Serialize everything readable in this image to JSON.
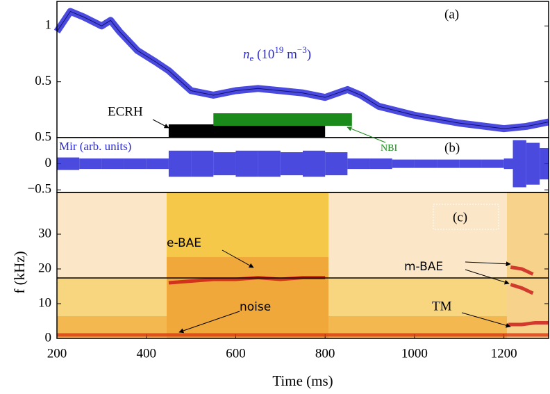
{
  "chart_data": [
    {
      "type": "line",
      "panel_label": "(a)",
      "xlim": [
        200,
        1300
      ],
      "ylim": [
        0,
        1.22
      ],
      "yticks": [
        0.5,
        1
      ],
      "label": {
        "base": "n",
        "sub": "e",
        "open": " (10",
        "sup1": "19",
        "unit": " m",
        "sup2": "−3",
        "close": ")"
      },
      "series": [
        {
          "color": "#2a2ad8",
          "x": [
            200,
            230,
            260,
            300,
            320,
            340,
            380,
            420,
            450,
            500,
            550,
            600,
            650,
            700,
            750,
            800,
            850,
            880,
            920,
            1000,
            1100,
            1200,
            1250,
            1300
          ],
          "values": [
            0.95,
            1.13,
            1.08,
            1.0,
            1.05,
            0.95,
            0.78,
            0.68,
            0.6,
            0.42,
            0.38,
            0.42,
            0.44,
            0.42,
            0.4,
            0.36,
            0.43,
            0.38,
            0.28,
            0.2,
            0.13,
            0.08,
            0.1,
            0.14
          ]
        }
      ],
      "heating": [
        {
          "name": "ECRH",
          "start": 450,
          "end": 800,
          "color": "#000000"
        },
        {
          "name": "NBI",
          "start": 550,
          "end": 860,
          "color": "#1a8a1a"
        }
      ]
    },
    {
      "type": "envelope",
      "panel_label": "(b)",
      "xlim": [
        200,
        1300
      ],
      "ylim": [
        -0.55,
        0.5
      ],
      "yticks": [
        {
          "value": -0.5,
          "label": "−0.5"
        },
        0,
        0.5
      ],
      "signal_label": "Mir (arb. units)",
      "color": "#2a2ad8",
      "x": [
        200,
        250,
        300,
        350,
        400,
        450,
        500,
        550,
        600,
        650,
        700,
        750,
        800,
        850,
        900,
        950,
        1000,
        1050,
        1100,
        1150,
        1200,
        1220,
        1250,
        1280,
        1300
      ],
      "values": [
        0.12,
        0.1,
        0.1,
        0.1,
        0.1,
        0.25,
        0.25,
        0.22,
        0.25,
        0.25,
        0.22,
        0.25,
        0.22,
        0.1,
        0.1,
        0.08,
        0.08,
        0.08,
        0.08,
        0.08,
        0.1,
        0.45,
        0.4,
        0.3,
        0.3
      ]
    },
    {
      "type": "spectrogram",
      "panel_label": "(c)",
      "xlim": [
        200,
        1300
      ],
      "ylim": [
        0,
        42
      ],
      "yticks": [
        0,
        10,
        20,
        30
      ],
      "xticks": [
        200,
        400,
        600,
        800,
        1000,
        1200
      ],
      "ylabel": "f (kHz)",
      "xlabel": "Time (ms)",
      "hline": 17.4,
      "series": [
        {
          "name": "e-BAE",
          "color": "#c81414",
          "x": [
            450,
            500,
            550,
            600,
            650,
            700,
            750,
            800
          ],
          "values": [
            16,
            16.5,
            17,
            17,
            17.5,
            17,
            17.5,
            17.5
          ]
        },
        {
          "name": "m-BAE",
          "color": "#c81414",
          "x": [
            1215,
            1240,
            1265,
            1270,
            1215,
            1240,
            1265
          ],
          "values": [
            20.5,
            20,
            18.5,
            null,
            15.5,
            14.5,
            13
          ]
        },
        {
          "name": "TM",
          "color": "#c81414",
          "x": [
            1210,
            1240,
            1270,
            1300
          ],
          "values": [
            4,
            4,
            4.5,
            4.5
          ]
        },
        {
          "name": "noise",
          "color": "#d83a10",
          "x": [
            200,
            1300
          ],
          "values": [
            1,
            1
          ]
        }
      ]
    }
  ]
}
